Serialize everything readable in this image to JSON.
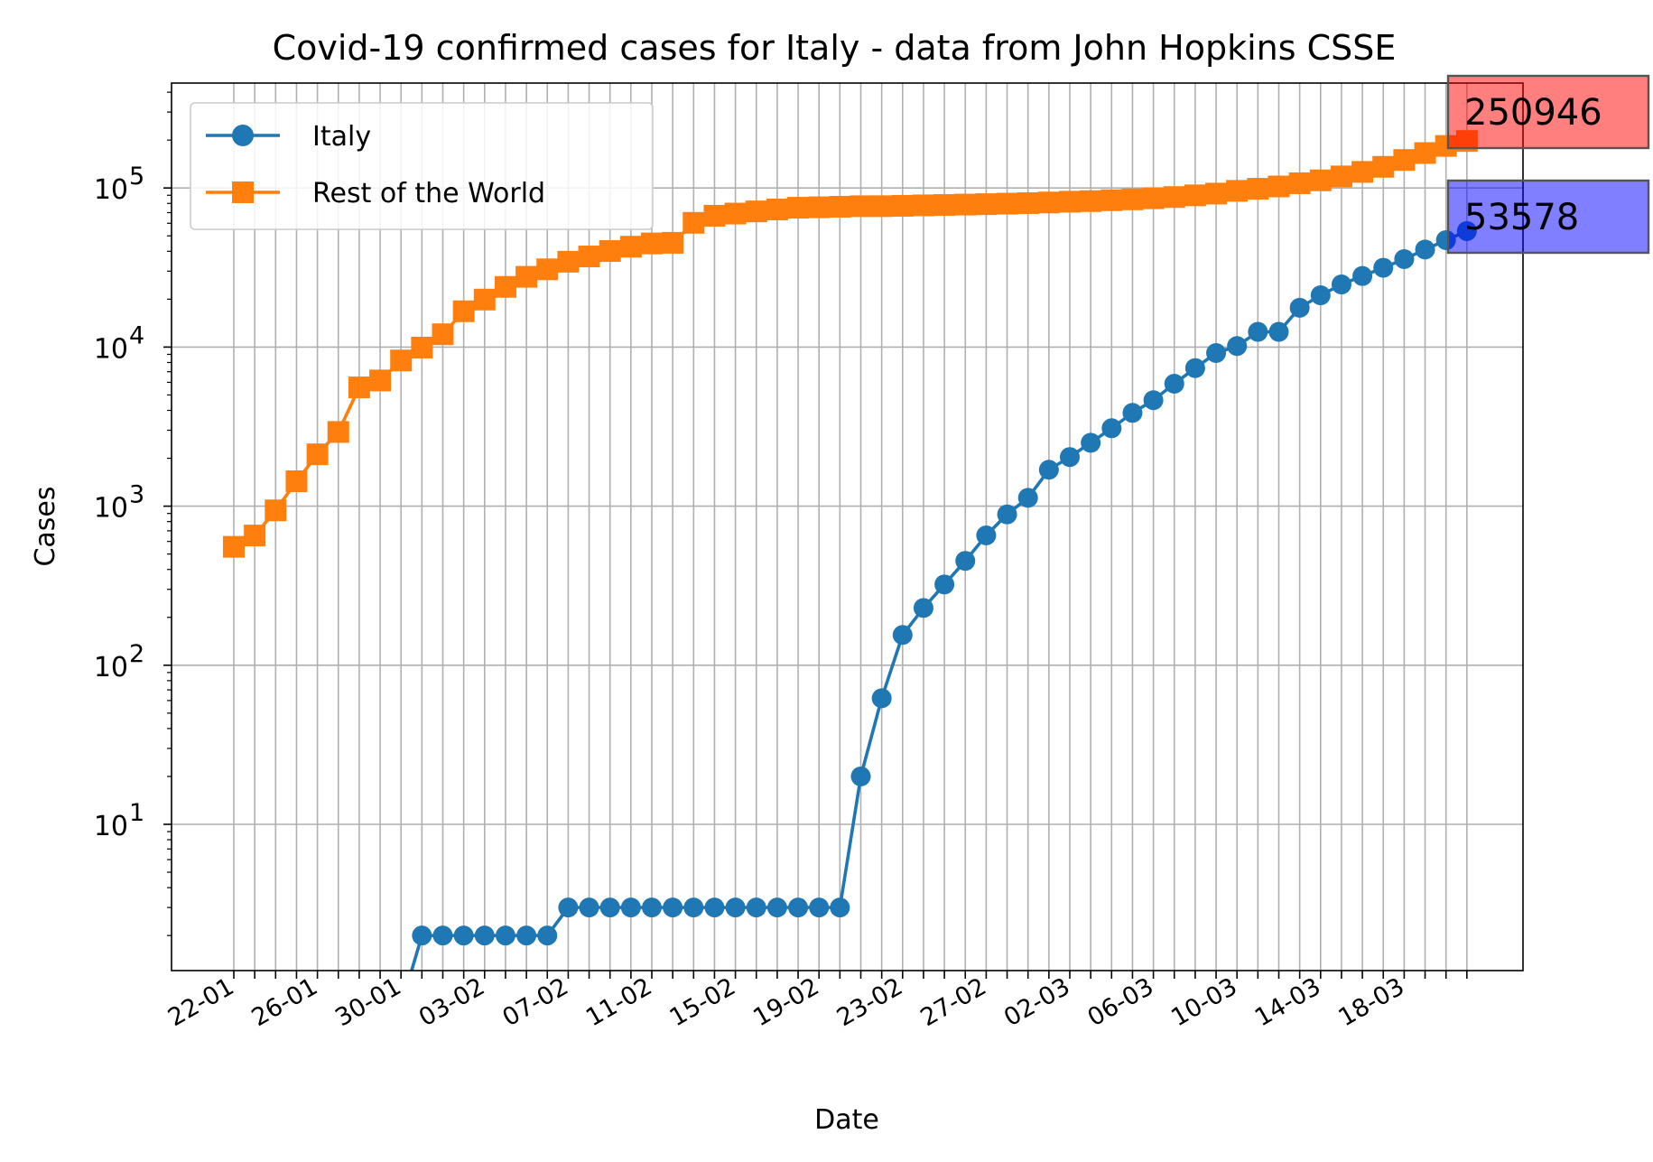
{
  "chart_data": {
    "type": "line",
    "title": "Covid-19 confirmed cases for Italy - data from John Hopkins CSSE",
    "xlabel": "Date",
    "ylabel": "Cases",
    "yscale": "log",
    "ylim": [
      1.2,
      450000
    ],
    "grid": true,
    "legend": {
      "position": "top-left",
      "entries": [
        "Italy",
        "Rest of the World"
      ]
    },
    "x_tick_labels": [
      "22-01",
      "26-01",
      "30-01",
      "03-02",
      "07-02",
      "11-02",
      "15-02",
      "19-02",
      "23-02",
      "27-02",
      "02-03",
      "06-03",
      "10-03",
      "14-03",
      "18-03"
    ],
    "y_tick_labels": [
      {
        "value": 10,
        "base": "10",
        "exp": "1"
      },
      {
        "value": 100,
        "base": "10",
        "exp": "2"
      },
      {
        "value": 1000,
        "base": "10",
        "exp": "3"
      },
      {
        "value": 10000,
        "base": "10",
        "exp": "4"
      },
      {
        "value": 100000,
        "base": "10",
        "exp": "5"
      }
    ],
    "x": [
      "22-01",
      "23-01",
      "24-01",
      "25-01",
      "26-01",
      "27-01",
      "28-01",
      "29-01",
      "30-01",
      "31-01",
      "01-02",
      "02-02",
      "03-02",
      "04-02",
      "05-02",
      "06-02",
      "07-02",
      "08-02",
      "09-02",
      "10-02",
      "11-02",
      "12-02",
      "13-02",
      "14-02",
      "15-02",
      "16-02",
      "17-02",
      "18-02",
      "19-02",
      "20-02",
      "21-02",
      "22-02",
      "23-02",
      "24-02",
      "25-02",
      "26-02",
      "27-02",
      "28-02",
      "29-02",
      "01-03",
      "02-03",
      "03-03",
      "04-03",
      "05-03",
      "06-03",
      "07-03",
      "08-03",
      "09-03",
      "10-03",
      "11-03",
      "12-03",
      "13-03",
      "14-03",
      "15-03",
      "16-03",
      "17-03",
      "18-03",
      "19-03",
      "20-03",
      "21-03"
    ],
    "series": [
      {
        "name": "Italy",
        "color": "#1f77b4",
        "marker": "circle",
        "values": [
          0,
          0,
          0,
          0,
          0,
          0,
          0,
          0,
          0,
          2,
          2,
          2,
          2,
          2,
          2,
          2,
          3,
          3,
          3,
          3,
          3,
          3,
          3,
          3,
          3,
          3,
          3,
          3,
          3,
          3,
          20,
          62,
          155,
          229,
          322,
          453,
          655,
          888,
          1128,
          1694,
          2036,
          2502,
          3089,
          3858,
          4636,
          5883,
          7375,
          9172,
          10149,
          12462,
          12462,
          17660,
          21157,
          24747,
          27980,
          31506,
          35713,
          41035,
          47021,
          53578
        ]
      },
      {
        "name": "Rest of the World",
        "color": "#ff7f0e",
        "marker": "square",
        "values": [
          555,
          654,
          941,
          1434,
          2118,
          2927,
          5578,
          6166,
          8234,
          9925,
          12036,
          16787,
          19887,
          23892,
          27636,
          30815,
          34391,
          37117,
          40150,
          42762,
          44802,
          45221,
          60368,
          66885,
          69030,
          71224,
          73258,
          75136,
          75639,
          76197,
          76803,
          76843,
          77246,
          77754,
          78166,
          78646,
          79117,
          79720,
          80306,
          81047,
          81969,
          82663,
          83747,
          84811,
          86155,
          87713,
          89879,
          92204,
          95942,
          98843,
          102225,
          107080,
          111716,
          118262,
          126240,
          135814,
          150012,
          165787,
          183719,
          197368
        ]
      }
    ],
    "annotations": [
      {
        "text": "250946",
        "series": "Rest of the World",
        "x": "21-03",
        "y": 250946,
        "box_color": "#ff0000"
      },
      {
        "text": "53578",
        "series": "Italy",
        "x": "21-03",
        "y": 53578,
        "box_color": "#0000ff"
      }
    ]
  }
}
